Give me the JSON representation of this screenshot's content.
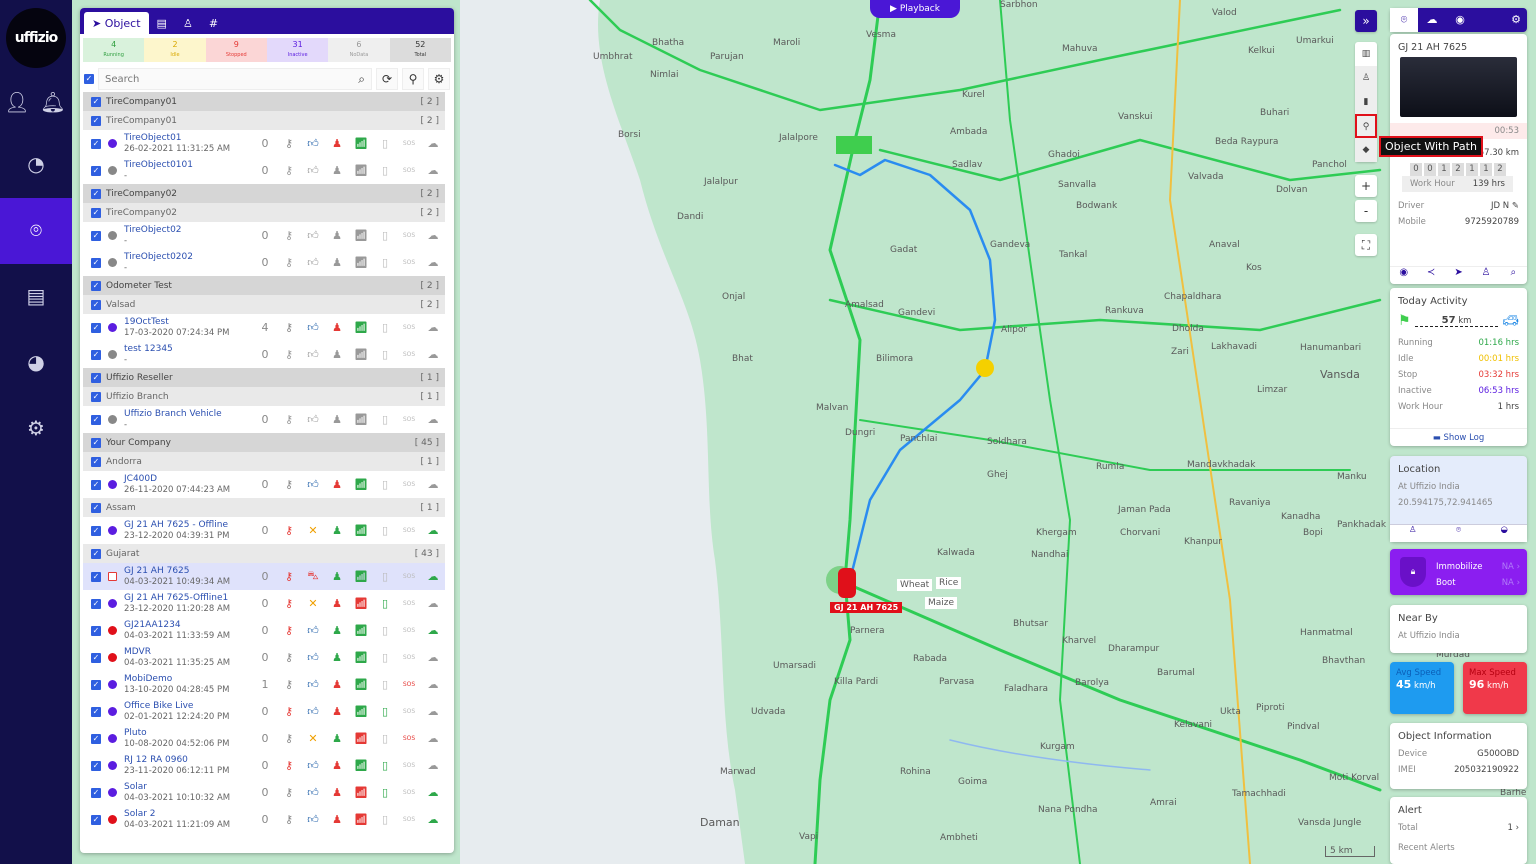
{
  "sidebar": {
    "logo": "uffizio",
    "items": [
      {
        "icon": "user-icon"
      },
      {
        "icon": "bell-icon"
      },
      {
        "icon": "dashboard-gauge-icon"
      },
      {
        "icon": "map-pin-icon",
        "active": true
      },
      {
        "icon": "report-icon"
      },
      {
        "icon": "chart-pie-icon"
      },
      {
        "icon": "settings-icon"
      }
    ]
  },
  "panel": {
    "tabs": [
      {
        "label": "Object",
        "icon": "navigation-arrow-icon"
      },
      {
        "icon": "document-icon"
      },
      {
        "icon": "people-icon"
      },
      {
        "icon": "grid-icon"
      }
    ],
    "stats": [
      {
        "count": "4",
        "label": "Running",
        "bg": "#d9f2dc",
        "color": "#2e9e3e"
      },
      {
        "count": "2",
        "label": "Idle",
        "bg": "#fdf6cc",
        "color": "#d9a800"
      },
      {
        "count": "9",
        "label": "Stopped",
        "bg": "#fbd6d6",
        "color": "#e53935"
      },
      {
        "count": "31",
        "label": "Inactive",
        "bg": "#e3d9fb",
        "color": "#5b1de0"
      },
      {
        "count": "6",
        "label": "NoData",
        "bg": "#efefef",
        "color": "#999"
      },
      {
        "count": "52",
        "label": "Total",
        "bg": "#dcdcdc",
        "color": "#333"
      }
    ],
    "search_placeholder": "Search",
    "rows": [
      {
        "t": "g",
        "name": "TireCompany01",
        "count": "[ 2 ]"
      },
      {
        "t": "s",
        "name": "TireCompany01",
        "count": "[ 2 ]"
      },
      {
        "t": "o",
        "name": "TireObject01",
        "time": "26-02-2021 11:31:25 AM",
        "dot": "#5b1de0",
        "n": "0",
        "c": [
          "#888",
          "#1f5fa8",
          "#e53935",
          "#2ea84a",
          "#bbb",
          "#bbb",
          "#999"
        ],
        "i4": "thumb"
      },
      {
        "t": "o",
        "name": "TireObject0101",
        "time": "-",
        "dot": "#888",
        "n": "0",
        "c": [
          "#999",
          "#999",
          "#999",
          "#999",
          "#bbb",
          "#bbb",
          "#999"
        ],
        "i4": "thumb"
      },
      {
        "t": "g",
        "name": "TireCompany02",
        "count": "[ 2 ]"
      },
      {
        "t": "s",
        "name": "TireCompany02",
        "count": "[ 2 ]"
      },
      {
        "t": "o",
        "name": "TireObject02",
        "time": "-",
        "dot": "#888",
        "n": "0",
        "c": [
          "#999",
          "#999",
          "#999",
          "#999",
          "#bbb",
          "#bbb",
          "#999"
        ],
        "i4": "thumb"
      },
      {
        "t": "o",
        "name": "TireObject0202",
        "time": "-",
        "dot": "#888",
        "n": "0",
        "c": [
          "#999",
          "#999",
          "#999",
          "#999",
          "#bbb",
          "#bbb",
          "#999"
        ],
        "i4": "thumb"
      },
      {
        "t": "g",
        "name": "Odometer Test",
        "count": "[ 2 ]"
      },
      {
        "t": "s",
        "name": "Valsad",
        "count": "[ 2 ]"
      },
      {
        "t": "o",
        "name": "19OctTest",
        "time": "17-03-2020 07:24:34 PM",
        "dot": "#5b1de0",
        "n": "4",
        "c": [
          "#888",
          "#1f5fa8",
          "#e53935",
          "#2ea84a",
          "#bbb",
          "#bbb",
          "#999"
        ],
        "i4": "thumb"
      },
      {
        "t": "o",
        "name": "test 12345",
        "time": "-",
        "dot": "#888",
        "n": "0",
        "c": [
          "#999",
          "#999",
          "#999",
          "#999",
          "#bbb",
          "#bbb",
          "#999"
        ],
        "i4": "thumb"
      },
      {
        "t": "g",
        "name": "Uffizio Reseller",
        "count": "[ 1 ]"
      },
      {
        "t": "s",
        "name": "Uffizio Branch",
        "count": "[ 1 ]"
      },
      {
        "t": "o",
        "name": "Uffizio Branch Vehicle",
        "time": "-",
        "dot": "#888",
        "n": "0",
        "c": [
          "#999",
          "#999",
          "#999",
          "#999",
          "#bbb",
          "#bbb",
          "#999"
        ],
        "i4": "thumb"
      },
      {
        "t": "g",
        "name": "Your Company",
        "count": "[ 45 ]"
      },
      {
        "t": "s",
        "name": "Andorra",
        "count": "[ 1 ]"
      },
      {
        "t": "o",
        "name": "JC400D",
        "time": "26-11-2020 07:44:23 AM",
        "dot": "#5b1de0",
        "n": "0",
        "c": [
          "#888",
          "#1f5fa8",
          "#e53935",
          "#2ea84a",
          "#bbb",
          "#bbb",
          "#999"
        ],
        "i4": "thumb"
      },
      {
        "t": "s",
        "name": "Assam",
        "count": "[ 1 ]"
      },
      {
        "t": "o",
        "name": "GJ 21 AH 7625 - Offline",
        "time": "23-12-2020 04:39:31 PM",
        "dot": "#5b1de0",
        "n": "0",
        "c": [
          "#e53935",
          "#f0a000",
          "#2ea84a",
          "#2ea84a",
          "#bbb",
          "#bbb",
          "#2ea84a"
        ],
        "i4": "tools"
      },
      {
        "t": "s",
        "name": "Gujarat",
        "count": "[ 43 ]"
      },
      {
        "t": "o",
        "name": "GJ 21 AH 7625",
        "time": "04-03-2021 10:49:34 AM",
        "dot": "calendar",
        "hl": true,
        "n": "0",
        "c": [
          "#e53935",
          "#e53935",
          "#2ea84a",
          "#2ea84a",
          "#bbb",
          "#bbb",
          "#2ea84a"
        ],
        "i4": "car-crash"
      },
      {
        "t": "o",
        "name": "GJ 21 AH 7625-Offline1",
        "time": "23-12-2020 11:20:28 AM",
        "dot": "#5b1de0",
        "n": "0",
        "c": [
          "#e53935",
          "#f0a000",
          "#e53935",
          "#e53935",
          "#2ea84a",
          "#bbb",
          "#999"
        ],
        "i4": "tools"
      },
      {
        "t": "o",
        "name": "GJ21AA1234",
        "time": "04-03-2021 11:33:59 AM",
        "dot": "#e0101a",
        "n": "0",
        "c": [
          "#e53935",
          "#1f5fa8",
          "#2ea84a",
          "#2ea84a",
          "#bbb",
          "#bbb",
          "#2ea84a"
        ],
        "i4": "thumb"
      },
      {
        "t": "o",
        "name": "MDVR",
        "time": "04-03-2021 11:35:25 AM",
        "dot": "#e0101a",
        "n": "0",
        "c": [
          "#888",
          "#1f5fa8",
          "#2ea84a",
          "#2ea84a",
          "#bbb",
          "#bbb",
          "#999"
        ],
        "i4": "thumb"
      },
      {
        "t": "o",
        "name": "MobiDemo",
        "time": "13-10-2020 04:28:45 PM",
        "dot": "#5b1de0",
        "n": "1",
        "c": [
          "#888",
          "#1f5fa8",
          "#e53935",
          "#2ea84a",
          "#bbb",
          "#e53935",
          "#999"
        ],
        "i4": "thumb"
      },
      {
        "t": "o",
        "name": "Office Bike Live",
        "time": "02-01-2021 12:24:20 PM",
        "dot": "#5b1de0",
        "n": "0",
        "c": [
          "#e53935",
          "#1f5fa8",
          "#e53935",
          "#2ea84a",
          "#2ea84a",
          "#bbb",
          "#999"
        ],
        "i4": "thumb"
      },
      {
        "t": "o",
        "name": "Pluto",
        "time": "10-08-2020 04:52:06 PM",
        "dot": "#5b1de0",
        "n": "0",
        "c": [
          "#888",
          "#f0a000",
          "#2ea84a",
          "#e53935",
          "#bbb",
          "#e53935",
          "#999"
        ],
        "i4": "tools"
      },
      {
        "t": "o",
        "name": "RJ 12 RA 0960",
        "time": "23-11-2020 06:12:11 PM",
        "dot": "#5b1de0",
        "n": "0",
        "c": [
          "#e53935",
          "#1f5fa8",
          "#e53935",
          "#2ea84a",
          "#2ea84a",
          "#bbb",
          "#999"
        ],
        "i4": "thumb"
      },
      {
        "t": "o",
        "name": "Solar",
        "time": "04-03-2021 10:10:32 AM",
        "dot": "#5b1de0",
        "n": "0",
        "c": [
          "#888",
          "#1f5fa8",
          "#e53935",
          "#e53935",
          "#2ea84a",
          "#bbb",
          "#2ea84a"
        ],
        "i4": "thumb"
      },
      {
        "t": "o",
        "name": "Solar 2",
        "time": "04-03-2021 11:21:09 AM",
        "dot": "#e0101a",
        "n": "0",
        "c": [
          "#888",
          "#1f5fa8",
          "#e53935",
          "#e53935",
          "#bbb",
          "#bbb",
          "#2ea84a"
        ],
        "i4": "thumb"
      }
    ]
  },
  "map": {
    "playback_label": "Playback",
    "vehicle_label": "GJ 21 AH 7625",
    "markers": [
      "Wheat",
      "Rice",
      "Maize"
    ],
    "scale": "5 km",
    "places": [
      "Bhatha",
      "Umbhrat",
      "Nimlai",
      "Maroli",
      "Parujan",
      "Vesma",
      "Sarbhon",
      "Mahuva",
      "Valod",
      "Kelkui",
      "Umarkui",
      "Borsi",
      "Jalalpore",
      "Kurel",
      "Ambada",
      "Vanskui",
      "Buhari",
      "Beda Raypura",
      "Jalalpur",
      "Dandi",
      "Sadlav",
      "Ghadoi",
      "Sanvalla",
      "Valvada",
      "Dolvan",
      "Gadat",
      "Gandeva",
      "Bodwank",
      "Tankal",
      "Onjal",
      "Amalsad",
      "Gandevi",
      "Anaval",
      "Kos",
      "Chapaldhara",
      "Alipor",
      "Rankuva",
      "Dholda",
      "Zari",
      "Lakhavadi",
      "Hanumanbari",
      "Bilimora",
      "Bhat",
      "Malvan",
      "Dungri",
      "Panchlai",
      "Soldhara",
      "Ghej",
      "Rumla",
      "Limzar",
      "Vansda",
      "Mandavkhadak",
      "Manku",
      "Ravaniya",
      "Kanadha",
      "Pankhadak",
      "Jaman Pada",
      "Chorvani",
      "Khergam",
      "Nandhai",
      "Kalwada",
      "Khanpur",
      "Bopi",
      "Bhutsar",
      "Parnera",
      "Rabada",
      "Kharvel",
      "Dharampur",
      "Hanmatmal",
      "Umarsadi",
      "Killa Pardi",
      "Parvasa",
      "Faladhara",
      "Barolya",
      "Barumal",
      "Bhavthan",
      "Udvada",
      "Ukta",
      "Piproti",
      "Kelavani",
      "Pindval",
      "Marwad",
      "Rohina",
      "Goima",
      "Kurgam",
      "Daman",
      "Vapi",
      "Nana Pondha",
      "Ambheti",
      "Amrai",
      "Tamachhadi",
      "Moti Korval",
      "Vansda Jungle",
      "Barhe",
      "Murdad",
      "Panchol"
    ]
  },
  "controls": {
    "expand": "chevrons-right-icon",
    "items": [
      "map-layers-icon",
      "people-icon",
      "road-icon",
      "object-with-path-icon",
      "tag-icon"
    ],
    "tooltip": "Object With Path",
    "zoom_in": "+",
    "zoom_out": "-",
    "fullscreen": "fullscreen-icon"
  },
  "right": {
    "tabs": [
      "location-pin-icon",
      "engine-icon",
      "speed-icon",
      "settings-icon"
    ],
    "vehicle": {
      "title": "GJ 21 AH 7625",
      "time": "00:53",
      "last_trip_label": "Last Trip",
      "last_trip": "57.30 km",
      "odometer": [
        "0",
        "0",
        "1",
        "2",
        "1",
        "1",
        "2"
      ],
      "work_hour_label": "Work Hour",
      "work_hour": "139 hrs",
      "driver_label": "Driver",
      "driver": "JD N",
      "mobile_label": "Mobile",
      "mobile": "9725920789"
    },
    "actions": [
      "eye-icon",
      "share-icon",
      "navigate-icon",
      "people-icon",
      "search-location-icon"
    ],
    "today": {
      "title": "Today Activity",
      "distance": "57",
      "unit": "km",
      "items": [
        {
          "label": "Running",
          "value": "01:16 hrs",
          "color": "#2ea84a"
        },
        {
          "label": "Idle",
          "value": "00:01 hrs",
          "color": "#f0c000"
        },
        {
          "label": "Stop",
          "value": "03:32 hrs",
          "color": "#e53935"
        },
        {
          "label": "Inactive",
          "value": "06:53 hrs",
          "color": "#5b1de0"
        },
        {
          "label": "Work Hour",
          "value": "1 hrs",
          "color": "#444"
        }
      ],
      "show_log": "Show Log"
    },
    "location": {
      "title": "Location",
      "address": "At Uffizio India",
      "coords": "20.594175,72.941465"
    },
    "immobilize": {
      "label1": "Immobilize",
      "val1": "NA",
      "label2": "Boot",
      "val2": "NA"
    },
    "nearby": {
      "title": "Near By",
      "value": "At Uffizio India"
    },
    "avg_speed": {
      "label": "Avg Speed",
      "value": "45",
      "unit": "km/h"
    },
    "max_speed": {
      "label": "Max Speed",
      "value": "96",
      "unit": "km/h"
    },
    "info": {
      "title": "Object Information",
      "device_label": "Device",
      "device": "G500OBD",
      "imei_label": "IMEI",
      "imei": "205032190922"
    },
    "alert": {
      "title": "Alert",
      "total_label": "Total",
      "total": "1",
      "recent": "Recent Alerts"
    }
  }
}
